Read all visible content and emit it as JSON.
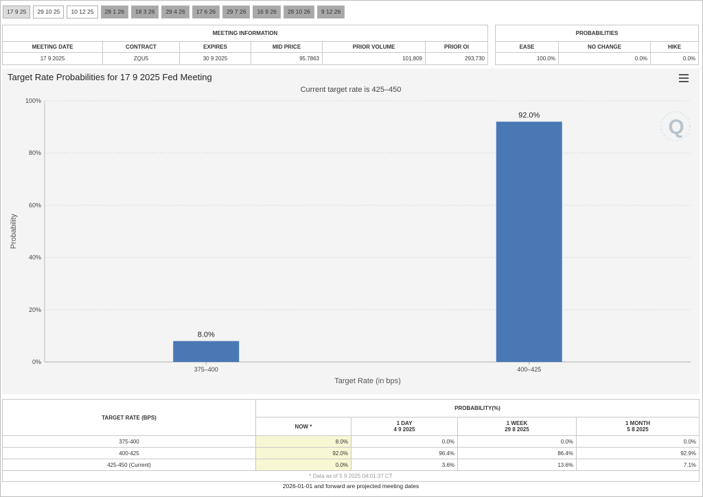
{
  "tabs": [
    "17 9 25",
    "29 10 25",
    "10 12 25",
    "28 1 26",
    "18 3 26",
    "29 4 26",
    "17 6 26",
    "29 7 26",
    "16 9 26",
    "28 10 26",
    "9 12 26"
  ],
  "meeting_info": {
    "title": "MEETING INFORMATION",
    "headers": [
      "MEETING DATE",
      "CONTRACT",
      "EXPIRES",
      "MID PRICE",
      "PRIOR VOLUME",
      "PRIOR OI"
    ],
    "row": [
      "17 9 2025",
      "ZQU5",
      "30 9 2025",
      "95.7863",
      "101,809",
      "293,730"
    ]
  },
  "probabilities": {
    "title": "PROBABILITIES",
    "headers": [
      "EASE",
      "NO CHANGE",
      "HIKE"
    ],
    "row": [
      "100.0%",
      "0.0%",
      "0.0%"
    ]
  },
  "chart": {
    "title": "Target Rate Probabilities for 17 9 2025 Fed Meeting",
    "subtitle": "Current target rate is 425–450",
    "watermark": "Q",
    "menu_icon": "hamburger-menu-icon"
  },
  "chart_data": {
    "type": "bar",
    "categories": [
      "375–400",
      "400–425"
    ],
    "values": [
      8.0,
      92.0
    ],
    "data_labels": [
      "8.0%",
      "92.0%"
    ],
    "xlabel": "Target Rate (in bps)",
    "ylabel": "Probability",
    "ylim": [
      0,
      100
    ],
    "yticks": [
      "0%",
      "20%",
      "40%",
      "60%",
      "80%",
      "100%"
    ],
    "grid": true,
    "bar_color": "#4a78b4"
  },
  "rates_table": {
    "col_header": "TARGET RATE (BPS)",
    "group_header": "PROBABILITY(%)",
    "subheaders": [
      {
        "label": "NOW *",
        "date": ""
      },
      {
        "label": "1 DAY",
        "date": "4 9 2025"
      },
      {
        "label": "1 WEEK",
        "date": "29 8 2025"
      },
      {
        "label": "1 MONTH",
        "date": "5 8 2025"
      }
    ],
    "rows": [
      [
        "375-400",
        "8.0%",
        "0.0%",
        "0.0%",
        "0.0%"
      ],
      [
        "400-425",
        "92.0%",
        "96.4%",
        "86.4%",
        "92.9%"
      ],
      [
        "425-450 (Current)",
        "0.0%",
        "3.6%",
        "13.6%",
        "7.1%"
      ]
    ],
    "note": "* Data as of 5 9 2025 04:01:37 CT",
    "footer": "2026-01-01 and forward are projected meeting dates"
  }
}
